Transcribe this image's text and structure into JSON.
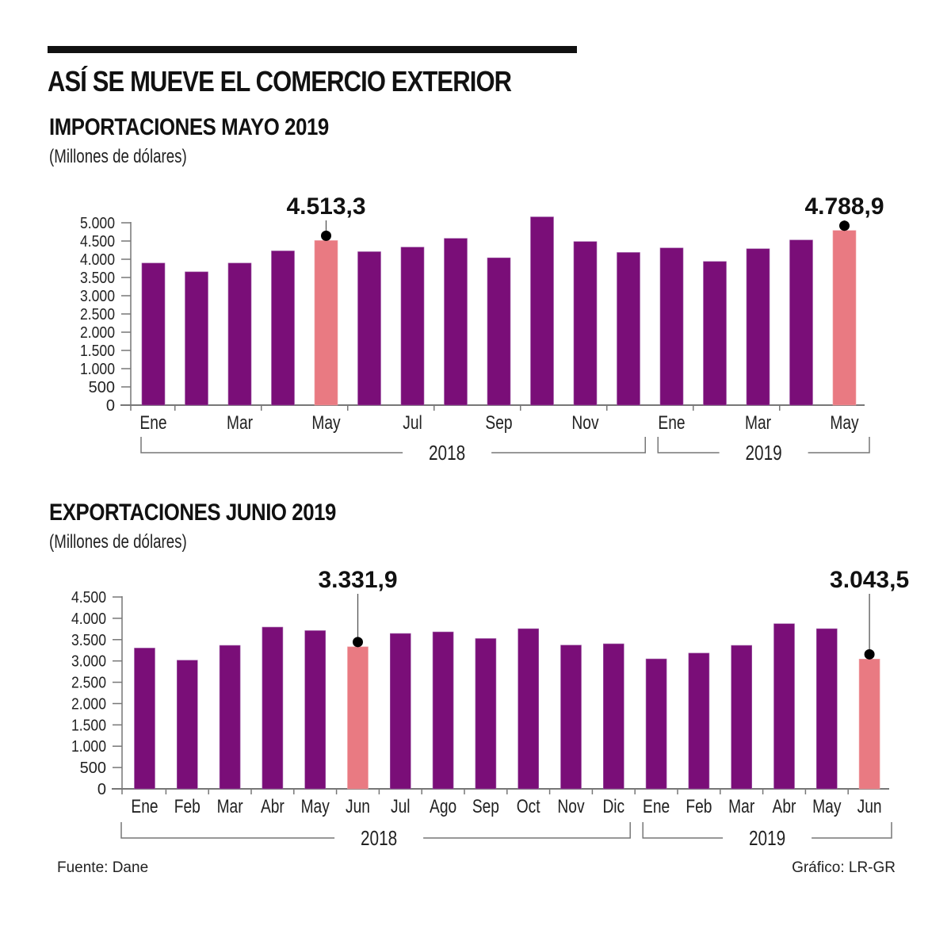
{
  "header": {
    "title": "ASÍ SE MUEVE EL COMERCIO EXTERIOR"
  },
  "colors": {
    "bar": "#7a0e78",
    "highlight": "#e97a82",
    "axis": "#777777"
  },
  "chart_data": [
    {
      "type": "bar",
      "title": "IMPORTACIONES MAYO 2019",
      "subtitle": "(Millones de dólares)",
      "xlabel": "",
      "ylabel": "",
      "ylim": [
        0,
        5000
      ],
      "yticks": [
        0,
        500,
        1000,
        1500,
        2000,
        2500,
        3000,
        3500,
        4000,
        4500,
        5000
      ],
      "ytick_labels": [
        "0",
        "500",
        "1.000",
        "1.500",
        "2.000",
        "2.500",
        "3.000",
        "3.500",
        "4.000",
        "4.500",
        "5.000"
      ],
      "grid": false,
      "categories": [
        "Ene 2018",
        "Feb 2018",
        "Mar 2018",
        "Abr 2018",
        "May 2018",
        "Jun 2018",
        "Jul 2018",
        "Ago 2018",
        "Sep 2018",
        "Oct 2018",
        "Nov 2018",
        "Dic 2018",
        "Ene 2019",
        "Feb 2019",
        "Mar 2019",
        "Abr 2019",
        "May 2019"
      ],
      "values": [
        3895,
        3655,
        3895,
        4229,
        4513.3,
        4207,
        4332,
        4572,
        4039,
        5162,
        4485,
        4186,
        4310,
        3939,
        4288,
        4528,
        4788.9
      ],
      "highlighted": [
        4,
        16
      ],
      "x_tick_labels": [
        {
          "index": 0,
          "label": "Ene"
        },
        {
          "index": 2,
          "label": "Mar"
        },
        {
          "index": 4,
          "label": "May"
        },
        {
          "index": 6,
          "label": "Jul"
        },
        {
          "index": 8,
          "label": "Sep"
        },
        {
          "index": 10,
          "label": "Nov"
        },
        {
          "index": 12,
          "label": "Ene"
        },
        {
          "index": 14,
          "label": "Mar"
        },
        {
          "index": 16,
          "label": "May"
        }
      ],
      "year_groups": [
        {
          "label": "2018",
          "from": 0,
          "to": 11
        },
        {
          "label": "2019",
          "from": 12,
          "to": 16
        }
      ],
      "annotations": [
        {
          "index": 4,
          "text": "4.513,3"
        },
        {
          "index": 16,
          "text": "4.788,9"
        }
      ]
    },
    {
      "type": "bar",
      "title": "EXPORTACIONES JUNIO 2019",
      "subtitle": "(Millones de dólares)",
      "xlabel": "",
      "ylabel": "",
      "ylim": [
        0,
        4500
      ],
      "yticks": [
        0,
        500,
        1000,
        1500,
        2000,
        2500,
        3000,
        3500,
        4000,
        4500
      ],
      "ytick_labels": [
        "0",
        "500",
        "1.000",
        "1.500",
        "2.000",
        "2.500",
        "3.000",
        "3.500",
        "4.000",
        "4.500"
      ],
      "grid": false,
      "categories": [
        "Ene 2018",
        "Feb 2018",
        "Mar 2018",
        "Abr 2018",
        "May 2018",
        "Jun 2018",
        "Jul 2018",
        "Ago 2018",
        "Sep 2018",
        "Oct 2018",
        "Nov 2018",
        "Dic 2018",
        "Ene 2019",
        "Feb 2019",
        "Mar 2019",
        "Abr 2019",
        "May 2019",
        "Jun 2019"
      ],
      "values": [
        3302,
        3017,
        3365,
        3793,
        3711,
        3331.9,
        3644,
        3681,
        3525,
        3756,
        3371,
        3402,
        3048,
        3184,
        3365,
        3873,
        3756,
        3043.5
      ],
      "highlighted": [
        5,
        17
      ],
      "x_tick_labels": [
        {
          "index": 0,
          "label": "Ene"
        },
        {
          "index": 1,
          "label": "Feb"
        },
        {
          "index": 2,
          "label": "Mar"
        },
        {
          "index": 3,
          "label": "Abr"
        },
        {
          "index": 4,
          "label": "May"
        },
        {
          "index": 5,
          "label": "Jun"
        },
        {
          "index": 6,
          "label": "Jul"
        },
        {
          "index": 7,
          "label": "Ago"
        },
        {
          "index": 8,
          "label": "Sep"
        },
        {
          "index": 9,
          "label": "Oct"
        },
        {
          "index": 10,
          "label": "Nov"
        },
        {
          "index": 11,
          "label": "Dic"
        },
        {
          "index": 12,
          "label": "Ene"
        },
        {
          "index": 13,
          "label": "Feb"
        },
        {
          "index": 14,
          "label": "Mar"
        },
        {
          "index": 15,
          "label": "Abr"
        },
        {
          "index": 16,
          "label": "May"
        },
        {
          "index": 17,
          "label": "Jun"
        }
      ],
      "year_groups": [
        {
          "label": "2018",
          "from": 0,
          "to": 11
        },
        {
          "label": "2019",
          "from": 12,
          "to": 17
        }
      ],
      "annotations": [
        {
          "index": 5,
          "text": "3.331,9"
        },
        {
          "index": 17,
          "text": "3.043,5"
        }
      ]
    }
  ],
  "footer": {
    "source": "Fuente: Dane",
    "credit": "Gráfico: LR-GR"
  }
}
